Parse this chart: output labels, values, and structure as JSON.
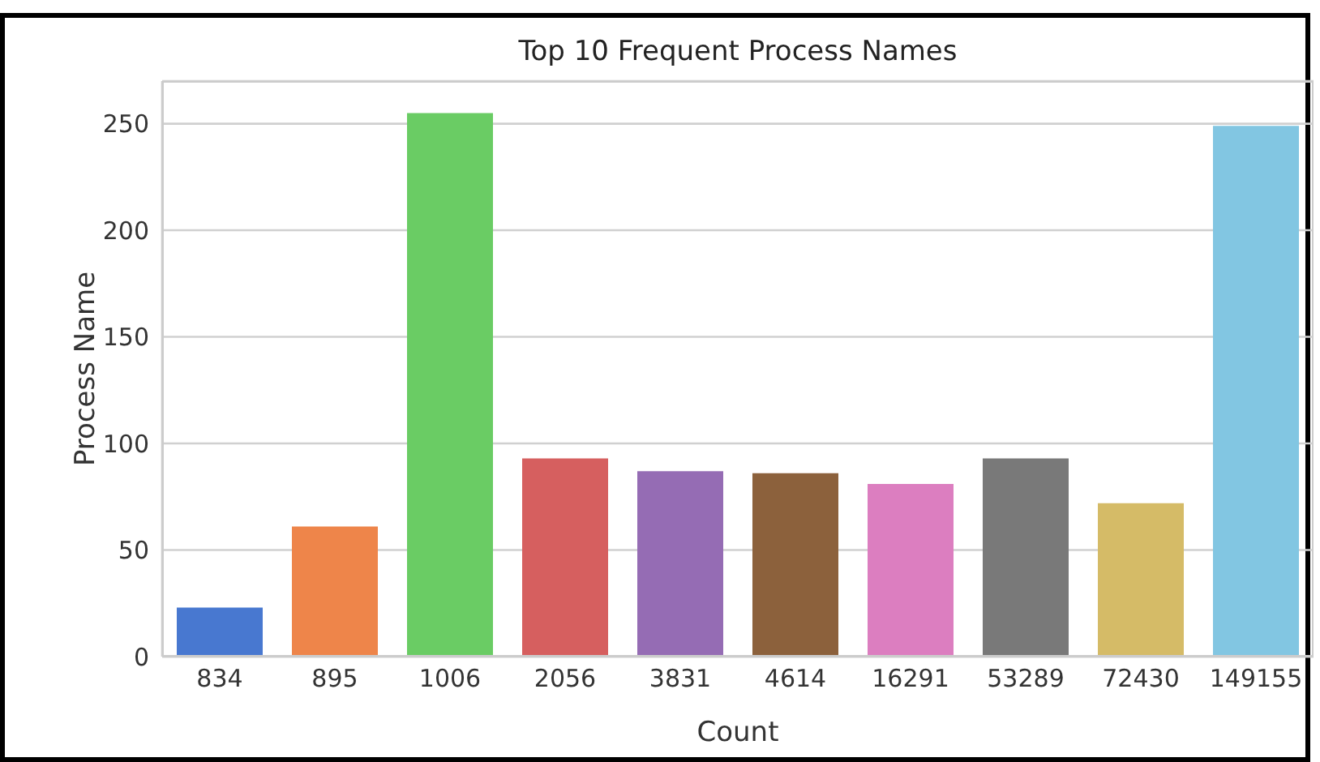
{
  "chart_data": {
    "type": "bar",
    "title": "Top 10 Frequent Process Names",
    "xlabel": "Count",
    "ylabel": "Process Name",
    "categories": [
      "834",
      "895",
      "1006",
      "2056",
      "3831",
      "4614",
      "16291",
      "53289",
      "72430",
      "149155"
    ],
    "values": [
      23,
      61,
      255,
      93,
      87,
      86,
      81,
      93,
      72,
      249
    ],
    "colors": [
      "#4878d0",
      "#ee854a",
      "#6acc64",
      "#d65f5f",
      "#956cb4",
      "#8c613c",
      "#dc7ec0",
      "#797979",
      "#d5bb67",
      "#82c6e2"
    ],
    "ylim": [
      0,
      270
    ],
    "yticks": [
      0,
      50,
      100,
      150,
      200,
      250
    ],
    "grid": "y"
  }
}
